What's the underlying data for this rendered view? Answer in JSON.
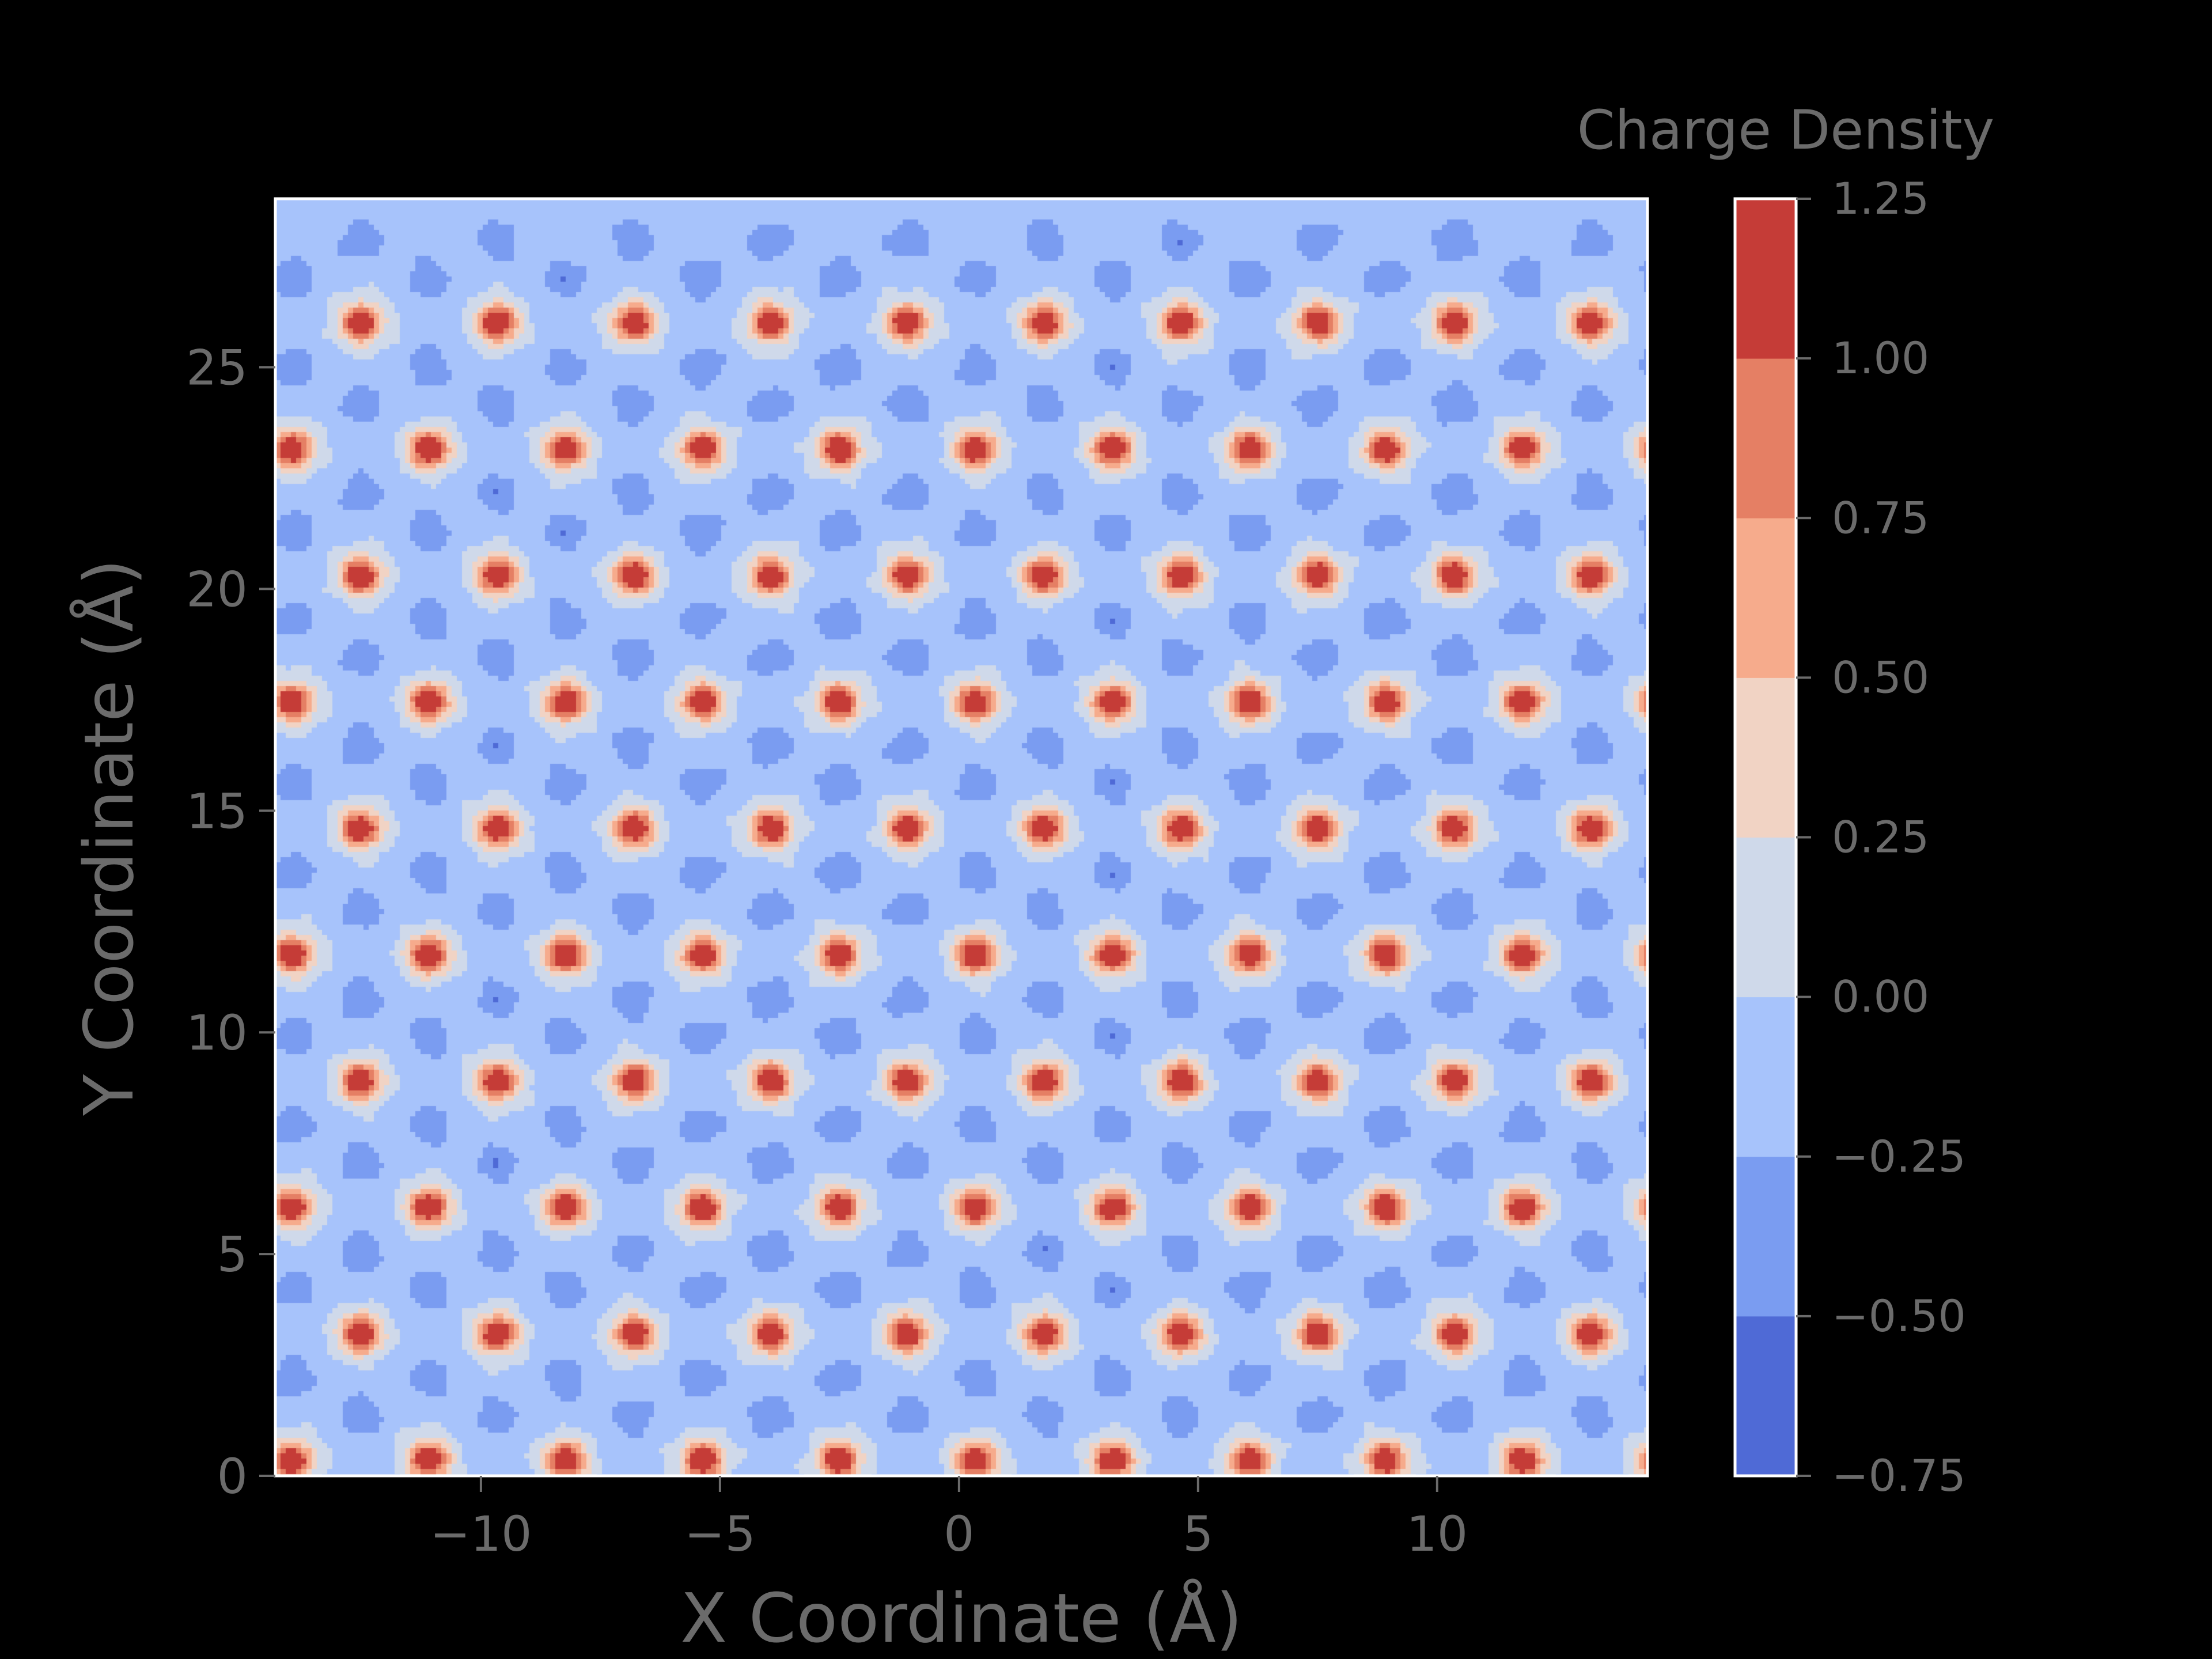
{
  "chart_data": {
    "type": "heatmap",
    "subtype": "filled-contour",
    "title": "",
    "xlabel": "X Coordinate ($\\AA$)",
    "ylabel": "Y Coordinate ($\\AA$)",
    "xlabel_display": "X Coordinate (Å)",
    "ylabel_display": "Y Coordinate (Å)",
    "xlim": [
      -14.3,
      14.4
    ],
    "ylim": [
      0,
      28.8
    ],
    "xticks": [
      -10,
      -5,
      0,
      5,
      10
    ],
    "xtick_labels": [
      "−10",
      "−5",
      "0",
      "5",
      "10"
    ],
    "yticks": [
      0,
      5,
      10,
      15,
      20,
      25
    ],
    "ytick_labels": [
      "0",
      "5",
      "10",
      "15",
      "20",
      "25"
    ],
    "grid": false,
    "lattice": {
      "description": "triangular lattice of positive charge peaks, with negative charge minima in between",
      "a": 2.86,
      "row_spacing": 2.85,
      "peak_rows_y": [
        0.35,
        3.2,
        6.05,
        8.9,
        11.75,
        14.6,
        17.45,
        20.3,
        23.15,
        26.0
      ],
      "peak_row_x_start": -13.95,
      "peak_value": 1.2,
      "minimum_value": -0.55,
      "background_value": -0.1
    },
    "colorbar": {
      "label": "Charge Density",
      "levels": [
        -0.75,
        -0.5,
        -0.25,
        0.0,
        0.25,
        0.5,
        0.75,
        1.0,
        1.25
      ],
      "tick_labels": [
        "−0.75",
        "−0.50",
        "−0.25",
        "0.00",
        "0.25",
        "0.50",
        "0.75",
        "1.00",
        "1.25"
      ],
      "colors": [
        "#4f6ad6",
        "#7a9cf1",
        "#a7c3fb",
        "#cfd9ea",
        "#f1d3c4",
        "#f6ab8c",
        "#e57f64",
        "#c53c37"
      ]
    },
    "colors": {
      "background": "#000000",
      "text": "#6b6b6b",
      "frame": "#ffffff"
    }
  }
}
